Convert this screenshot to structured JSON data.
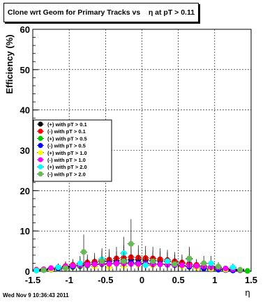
{
  "title": "Clone wrt Geom for Primary Tracks vs    η at pT > 0.11",
  "footer": "Wed Nov  9 10:36:43 2011",
  "chart_data": {
    "type": "scatter",
    "xlabel": "η",
    "ylabel": "Efficiency (%)",
    "xlim": [
      -1.5,
      1.5
    ],
    "ylim": [
      0,
      60
    ],
    "x_ticks": [
      "-1.5",
      "-1",
      "-0.5",
      "0",
      "0.5",
      "1",
      "1.5"
    ],
    "y_ticks": [
      "0",
      "10",
      "20",
      "30",
      "40",
      "50",
      "60"
    ],
    "grid": true,
    "legend_position": "middle-left",
    "series": [
      {
        "name": "(+) with pT > 0.1",
        "color": "#000000",
        "x": [
          -1.45,
          -1.35,
          -1.25,
          -1.15,
          -1.05,
          -0.95,
          -0.85,
          -0.75,
          -0.65,
          -0.55,
          -0.45,
          -0.35,
          -0.25,
          -0.15,
          -0.05,
          0.05,
          0.15,
          0.25,
          0.35,
          0.45,
          0.55,
          0.65,
          0.75,
          0.85,
          0.95,
          1.05,
          1.15,
          1.25,
          1.35
        ],
        "y": [
          0.3,
          0.4,
          0.6,
          0.9,
          1.1,
          1.4,
          1.6,
          1.9,
          2.1,
          2.3,
          2.5,
          2.6,
          2.8,
          2.9,
          2.9,
          2.8,
          2.7,
          2.6,
          2.4,
          2.2,
          2.0,
          1.7,
          1.5,
          1.3,
          1.1,
          0.9,
          0.7,
          0.5,
          0.3
        ]
      },
      {
        "name": "(-) with pT > 0.1",
        "color": "#ff0000",
        "x": [
          -1.45,
          -1.35,
          -1.25,
          -1.15,
          -1.05,
          -0.95,
          -0.85,
          -0.75,
          -0.65,
          -0.55,
          -0.45,
          -0.35,
          -0.25,
          -0.15,
          -0.05,
          0.05,
          0.15,
          0.25,
          0.35,
          0.45,
          0.55,
          0.65,
          0.75,
          0.85,
          0.95,
          1.05,
          1.15,
          1.25,
          1.35
        ],
        "y": [
          0.4,
          0.5,
          0.7,
          1.0,
          1.3,
          1.6,
          1.9,
          2.2,
          2.4,
          2.7,
          2.9,
          3.2,
          3.4,
          3.5,
          3.4,
          3.3,
          3.2,
          3.0,
          2.8,
          2.5,
          2.2,
          1.9,
          1.6,
          1.3,
          1.0,
          0.8,
          0.6,
          0.4,
          0.3
        ]
      },
      {
        "name": "(+) with pT > 0.5",
        "color": "#00cc00",
        "x": [
          -1.45,
          -1.35,
          -1.25,
          -1.15,
          -1.05,
          -0.95,
          -0.85,
          -0.75,
          -0.65,
          -0.55,
          -0.45,
          -0.35,
          -0.25,
          -0.15,
          -0.05,
          0.05,
          0.15,
          0.25,
          0.35,
          0.45,
          0.55,
          0.65,
          0.75,
          0.85,
          0.95,
          1.05,
          1.15,
          1.25,
          1.35,
          1.45
        ],
        "y": [
          0.2,
          0.3,
          0.4,
          0.6,
          0.8,
          1.0,
          1.2,
          1.4,
          1.6,
          1.7,
          1.8,
          1.9,
          2.0,
          2.0,
          2.0,
          1.9,
          1.9,
          1.8,
          1.7,
          1.6,
          1.4,
          1.2,
          1.1,
          0.9,
          0.7,
          0.5,
          0.4,
          0.3,
          0.2,
          0.1
        ]
      },
      {
        "name": "(-) with pT > 0.5",
        "color": "#0000ff",
        "x": [
          -1.35,
          -1.25,
          -1.15,
          -1.05,
          -0.95,
          -0.85,
          -0.75,
          -0.65,
          -0.55,
          -0.45,
          -0.35,
          -0.25,
          -0.15,
          -0.05,
          0.05,
          0.15,
          0.25,
          0.35,
          0.45,
          0.55,
          0.65,
          0.75,
          0.85,
          0.95,
          1.05,
          1.15,
          1.25
        ],
        "y": [
          0.3,
          0.5,
          0.7,
          0.9,
          1.2,
          1.4,
          1.6,
          1.8,
          1.9,
          2.0,
          2.1,
          2.2,
          2.2,
          2.1,
          2.0,
          1.9,
          1.8,
          1.7,
          1.5,
          1.3,
          1.1,
          0.9,
          0.7,
          0.5,
          0.4,
          0.3,
          0.2
        ]
      },
      {
        "name": "(+) with pT > 1.0",
        "color": "#ffff00",
        "x": [
          -1.25,
          -1.05,
          -0.85,
          -0.65,
          -0.45,
          -0.25,
          -0.05,
          0.15,
          0.35,
          0.55,
          0.75,
          0.95,
          1.15
        ],
        "y": [
          0.5,
          0.8,
          1.5,
          1.2,
          1.0,
          1.3,
          1.6,
          1.4,
          1.8,
          1.2,
          0.9,
          0.6,
          0.4
        ]
      },
      {
        "name": "(-) with pT > 1.0",
        "color": "#ff00ff",
        "x": [
          -1.45,
          -1.35,
          -1.25,
          -1.15,
          -1.05,
          -0.95,
          -0.85,
          -0.75,
          -0.65,
          -0.55,
          -0.45,
          -0.35,
          -0.25,
          -0.15,
          -0.05,
          0.05,
          0.15,
          0.25,
          0.35,
          0.45,
          0.55,
          0.65,
          0.75,
          0.85,
          0.95,
          1.05,
          1.15,
          1.25,
          1.35
        ],
        "y": [
          0.3,
          0.5,
          0.8,
          1.0,
          1.2,
          1.4,
          1.5,
          1.6,
          1.7,
          1.8,
          1.8,
          1.9,
          1.9,
          1.8,
          1.8,
          1.8,
          1.7,
          1.7,
          1.6,
          1.6,
          1.5,
          1.4,
          1.3,
          1.2,
          1.0,
          0.9,
          0.7,
          0.5,
          0.3
        ]
      },
      {
        "name": "(+) with pT > 2.0",
        "color": "#00ffff",
        "x": [
          -1.45,
          -1.15,
          -0.85,
          -0.55,
          -0.25,
          0.05,
          0.35,
          0.65,
          0.95,
          1.25
        ],
        "y": [
          0.2,
          1.0,
          2.0,
          3.0,
          4.5,
          1.5,
          2.5,
          3.0,
          2.0,
          1.0
        ]
      },
      {
        "name": "(-) with pT > 2.0",
        "color": "#66bb55",
        "x": [
          -1.35,
          -1.05,
          -0.8,
          -0.55,
          -0.25,
          -0.15,
          0.15,
          0.45,
          0.65,
          0.85,
          1.05,
          1.35
        ],
        "y": [
          0.3,
          0.8,
          4.8,
          2.5,
          2.5,
          6.8,
          2.5,
          1.8,
          3.2,
          2.0,
          1.2,
          0.4
        ]
      }
    ]
  }
}
